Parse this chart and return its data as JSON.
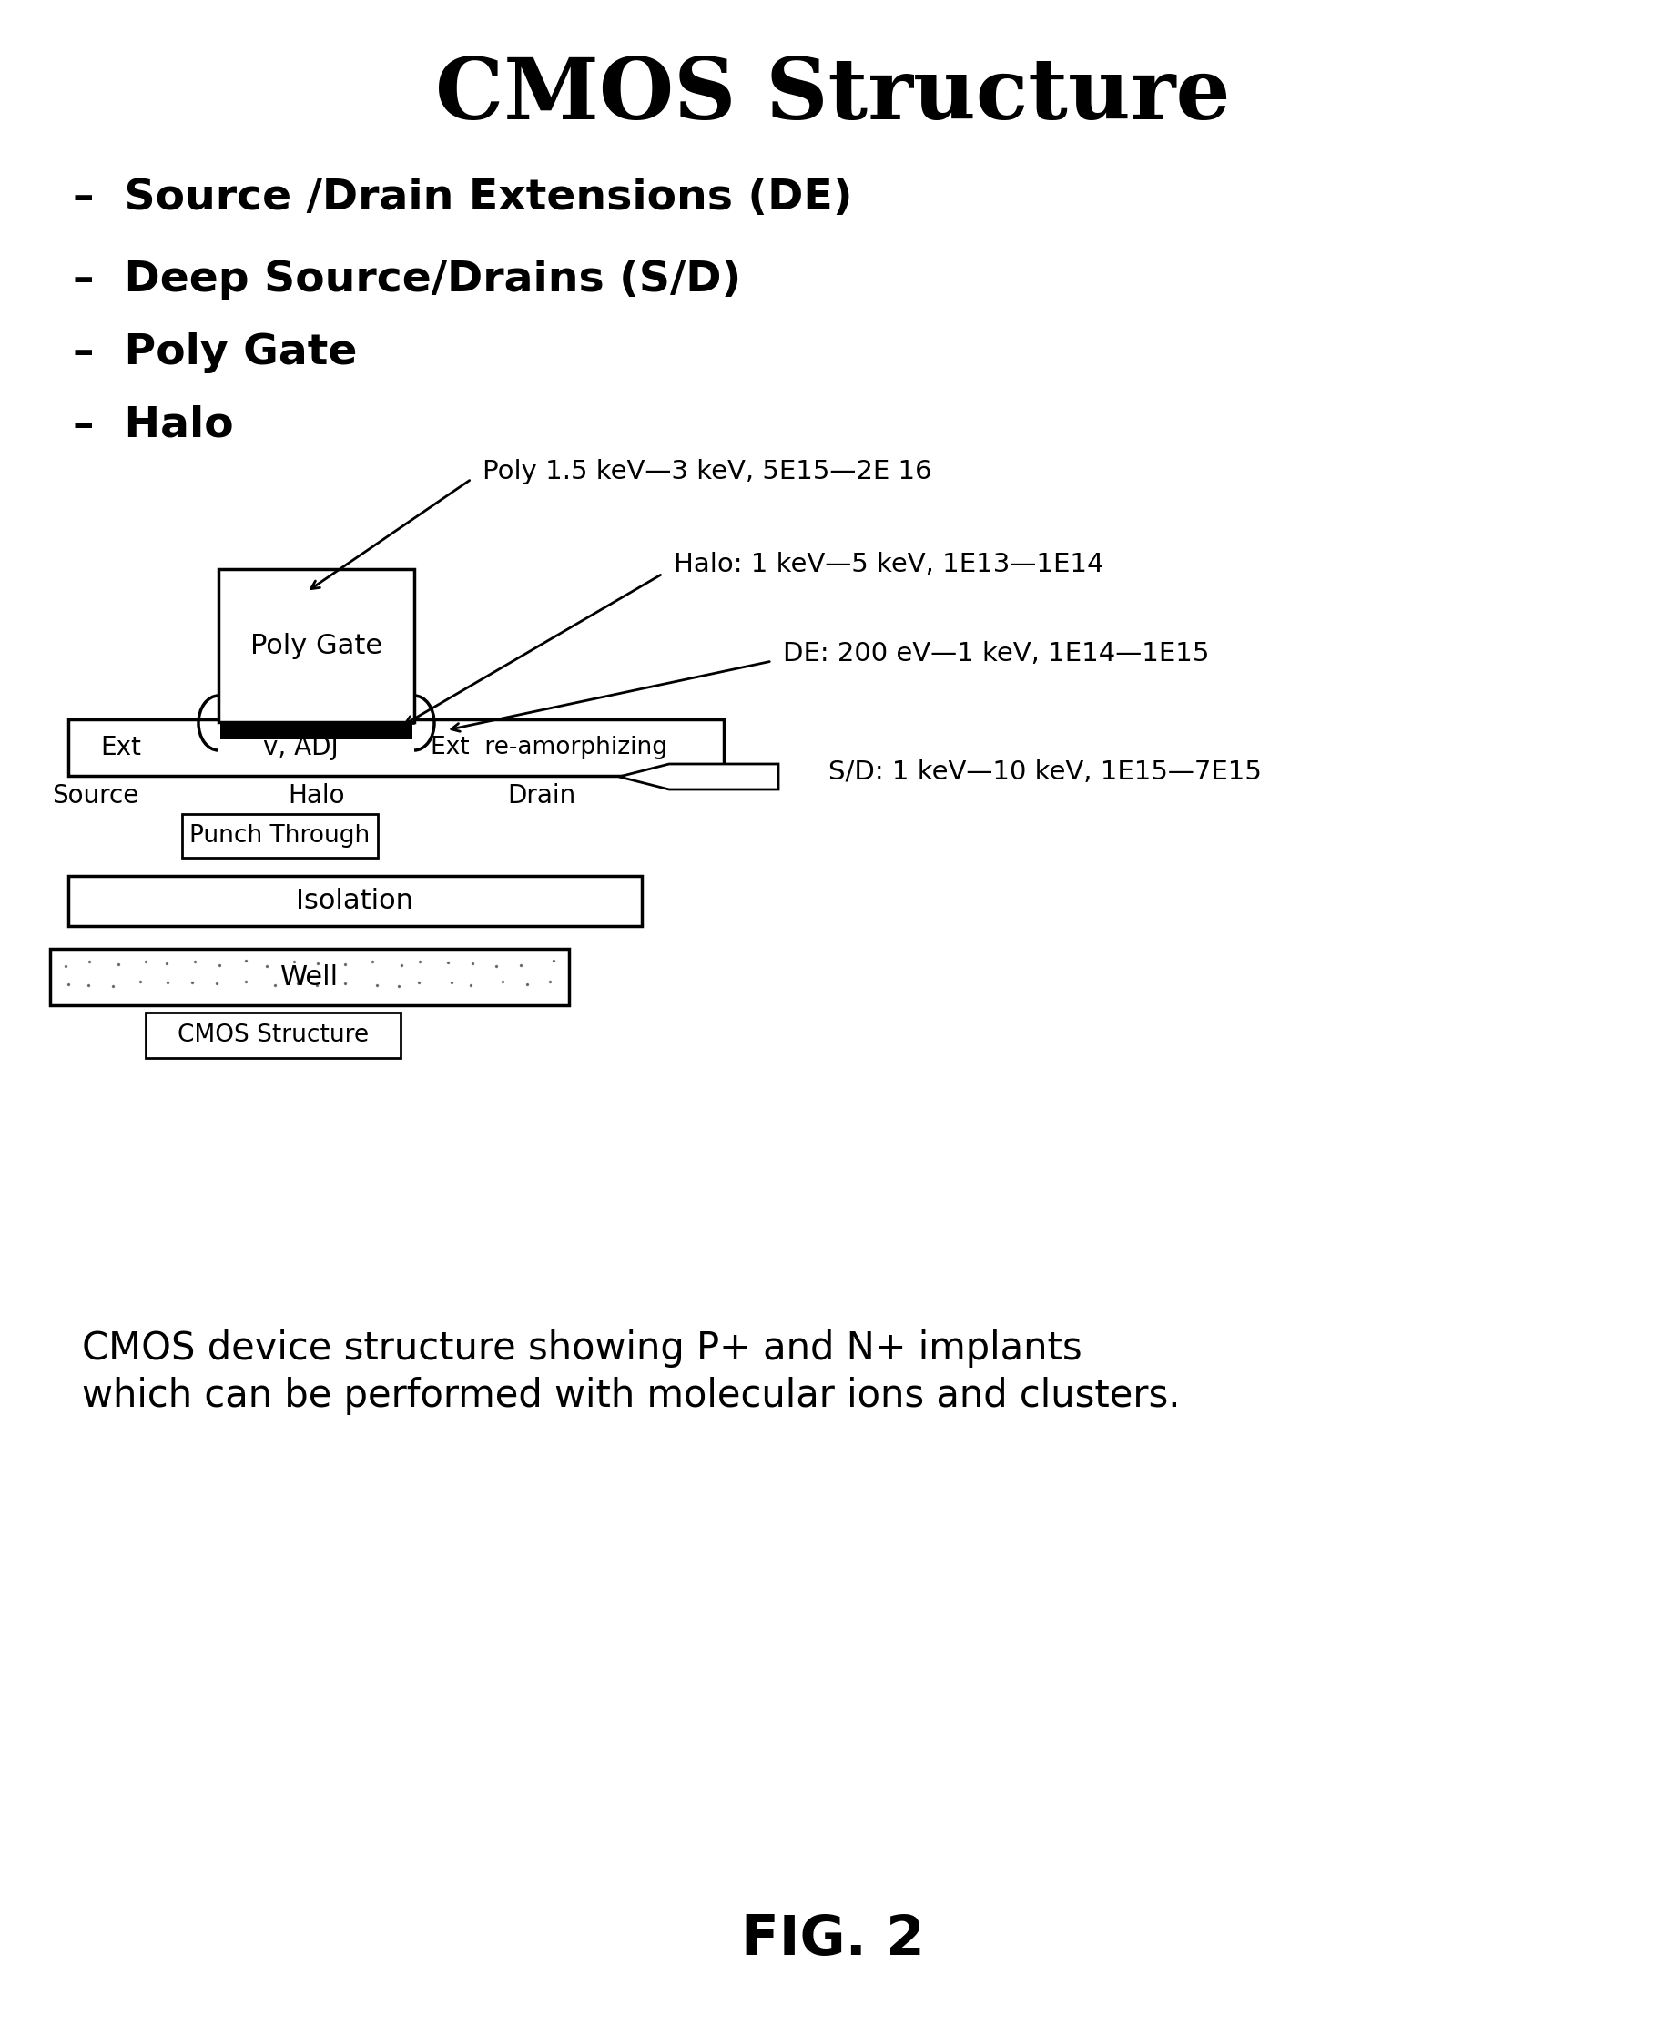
{
  "title": "CMOS Structure",
  "bullet_items": [
    "–  Source /Drain Extensions (DE)",
    "–  Deep Source/Drains (S/D)",
    "–  Poly Gate",
    "–  Halo"
  ],
  "ann_poly": "Poly 1.5 keV—3 keV, 5E15—2E 16",
  "ann_halo": "Halo: 1 keV—5 keV, 1E13—1E14",
  "ann_de": "DE: 200 eV—1 keV, 1E14—1E15",
  "ann_sd": "S/D: 1 keV—10 keV, 1E15—7E15",
  "lbl_ext": "Ext",
  "lbl_vadj": "v, ADJ",
  "lbl_ext2": "Ext",
  "lbl_reamorphizing": "re-amorphizing",
  "lbl_source": "Source",
  "lbl_halo": "Halo",
  "lbl_drain": "Drain",
  "lbl_polygate": "Poly Gate",
  "lbl_punchthrough": "Punch Through",
  "lbl_isolation": "Isolation",
  "lbl_well": "Well",
  "lbl_cmos": "CMOS Structure",
  "caption_line1": "CMOS device structure showing P+ and N+ implants",
  "caption_line2": "which can be performed with molecular ions and clusters.",
  "fig_label": "FIG. 2",
  "bg_color": "#ffffff",
  "text_color": "#000000"
}
